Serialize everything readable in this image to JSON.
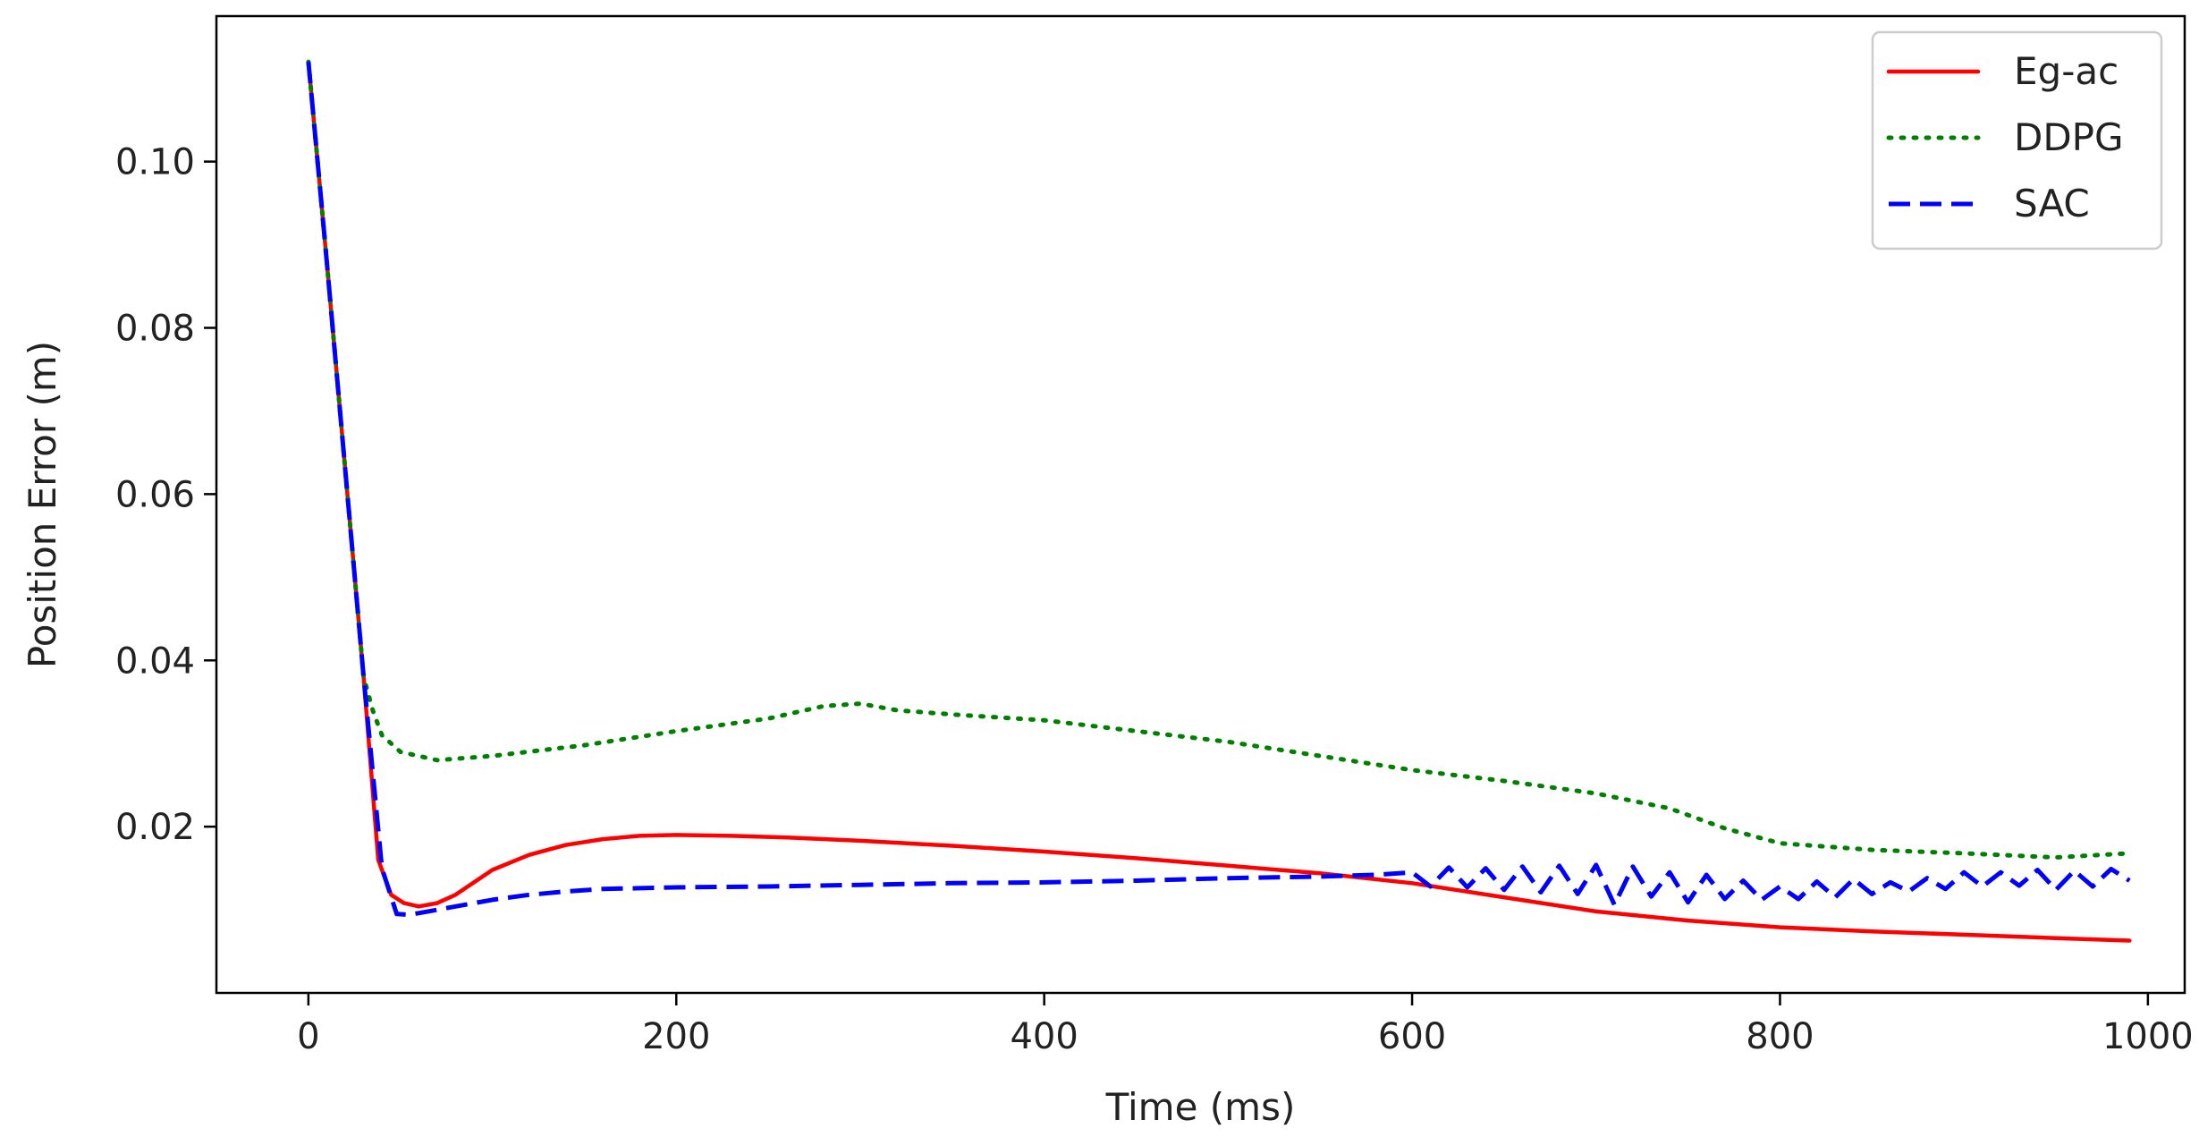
{
  "chart_data": {
    "type": "line",
    "title": "",
    "xlabel": "Time (ms)",
    "ylabel": "Position Error (m)",
    "xlim": [
      -50,
      1020
    ],
    "ylim": [
      0.0,
      0.1175
    ],
    "xticks": [
      0,
      200,
      400,
      600,
      800,
      1000
    ],
    "xtick_labels": [
      "0",
      "200",
      "400",
      "600",
      "800",
      "1000"
    ],
    "yticks": [
      0.02,
      0.04,
      0.06,
      0.08,
      0.1
    ],
    "ytick_labels": [
      "0.02",
      "0.04",
      "0.06",
      "0.08",
      "0.10"
    ],
    "grid": false,
    "legend_position": "top-right",
    "series": [
      {
        "name": "Eg-ac",
        "color": "#ff0000",
        "style": "solid",
        "x": [
          0,
          10,
          20,
          30,
          38,
          45,
          52,
          60,
          70,
          80,
          100,
          120,
          140,
          160,
          180,
          200,
          230,
          260,
          300,
          350,
          400,
          450,
          500,
          550,
          600,
          650,
          700,
          750,
          800,
          850,
          900,
          950,
          990
        ],
        "y": [
          0.112,
          0.088,
          0.063,
          0.038,
          0.016,
          0.0118,
          0.0108,
          0.0104,
          0.0108,
          0.0118,
          0.0148,
          0.0166,
          0.0178,
          0.0185,
          0.0189,
          0.019,
          0.0189,
          0.0187,
          0.0183,
          0.0177,
          0.017,
          0.0162,
          0.0153,
          0.0144,
          0.0132,
          0.0115,
          0.0098,
          0.0087,
          0.0079,
          0.0074,
          0.007,
          0.0066,
          0.0063
        ]
      },
      {
        "name": "DDPG",
        "color": "#008000",
        "style": "dotted",
        "x": [
          0,
          10,
          20,
          30,
          35,
          40,
          50,
          70,
          100,
          150,
          200,
          250,
          280,
          300,
          320,
          350,
          400,
          450,
          500,
          550,
          600,
          650,
          700,
          740,
          770,
          800,
          850,
          900,
          950,
          990
        ],
        "y": [
          0.112,
          0.088,
          0.063,
          0.038,
          0.034,
          0.031,
          0.029,
          0.028,
          0.0285,
          0.0298,
          0.0315,
          0.033,
          0.0345,
          0.0348,
          0.034,
          0.0335,
          0.0328,
          0.0315,
          0.0302,
          0.0285,
          0.0268,
          0.0255,
          0.024,
          0.0222,
          0.0198,
          0.018,
          0.0172,
          0.0168,
          0.0163,
          0.0168
        ]
      },
      {
        "name": "SAC",
        "color": "#0000ff",
        "style": "dashed",
        "x": [
          0,
          10,
          20,
          30,
          40,
          48,
          55,
          65,
          80,
          100,
          120,
          140,
          160,
          180,
          200,
          250,
          300,
          350,
          400,
          450,
          500,
          550,
          580,
          600,
          610,
          620,
          630,
          640,
          650,
          660,
          670,
          680,
          690,
          700,
          710,
          720,
          730,
          740,
          750,
          760,
          770,
          780,
          790,
          800,
          810,
          820,
          830,
          840,
          850,
          860,
          870,
          880,
          890,
          900,
          910,
          920,
          930,
          940,
          950,
          960,
          970,
          980,
          990
        ],
        "y": [
          0.112,
          0.088,
          0.063,
          0.038,
          0.015,
          0.0095,
          0.0094,
          0.0098,
          0.0104,
          0.0112,
          0.0118,
          0.0122,
          0.0125,
          0.0126,
          0.0127,
          0.0128,
          0.013,
          0.0132,
          0.0133,
          0.0135,
          0.0138,
          0.014,
          0.0142,
          0.0145,
          0.0128,
          0.0151,
          0.0127,
          0.015,
          0.0124,
          0.0152,
          0.0121,
          0.0153,
          0.0119,
          0.0154,
          0.0106,
          0.0152,
          0.0116,
          0.0145,
          0.0109,
          0.0142,
          0.0113,
          0.0135,
          0.0112,
          0.0128,
          0.0113,
          0.0134,
          0.0115,
          0.0137,
          0.0119,
          0.0133,
          0.0122,
          0.0138,
          0.0125,
          0.0145,
          0.0128,
          0.0145,
          0.0129,
          0.0148,
          0.0124,
          0.0147,
          0.0128,
          0.0149,
          0.0135
        ]
      }
    ]
  }
}
